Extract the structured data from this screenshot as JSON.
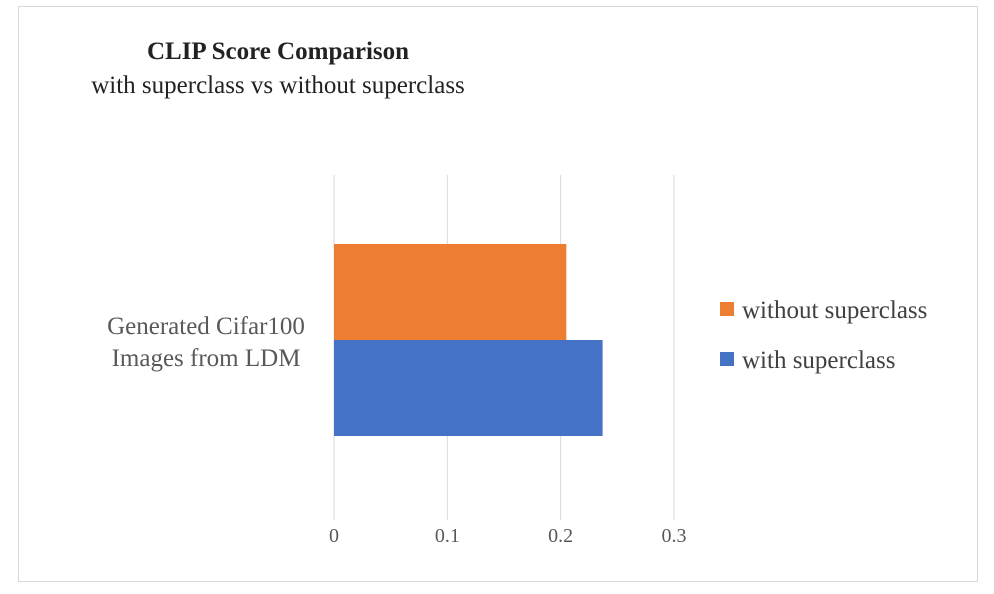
{
  "chart_data": {
    "type": "bar",
    "orientation": "horizontal",
    "title": "CLIP Score Comparison",
    "subtitle": "with superclass vs without superclass",
    "categories": [
      "Generated Cifar100 Images from LDM"
    ],
    "category_lines": [
      "Generated Cifar100",
      "Images from LDM"
    ],
    "series": [
      {
        "name": "without superclass",
        "values": [
          0.205
        ],
        "color": "#ED7D31"
      },
      {
        "name": "with superclass",
        "values": [
          0.237
        ],
        "color": "#4472C4"
      }
    ],
    "xlim": [
      0,
      0.3
    ],
    "xticks": [
      "0",
      "0.1",
      "0.2",
      "0.3"
    ],
    "grid": true,
    "legend_position": "right"
  }
}
